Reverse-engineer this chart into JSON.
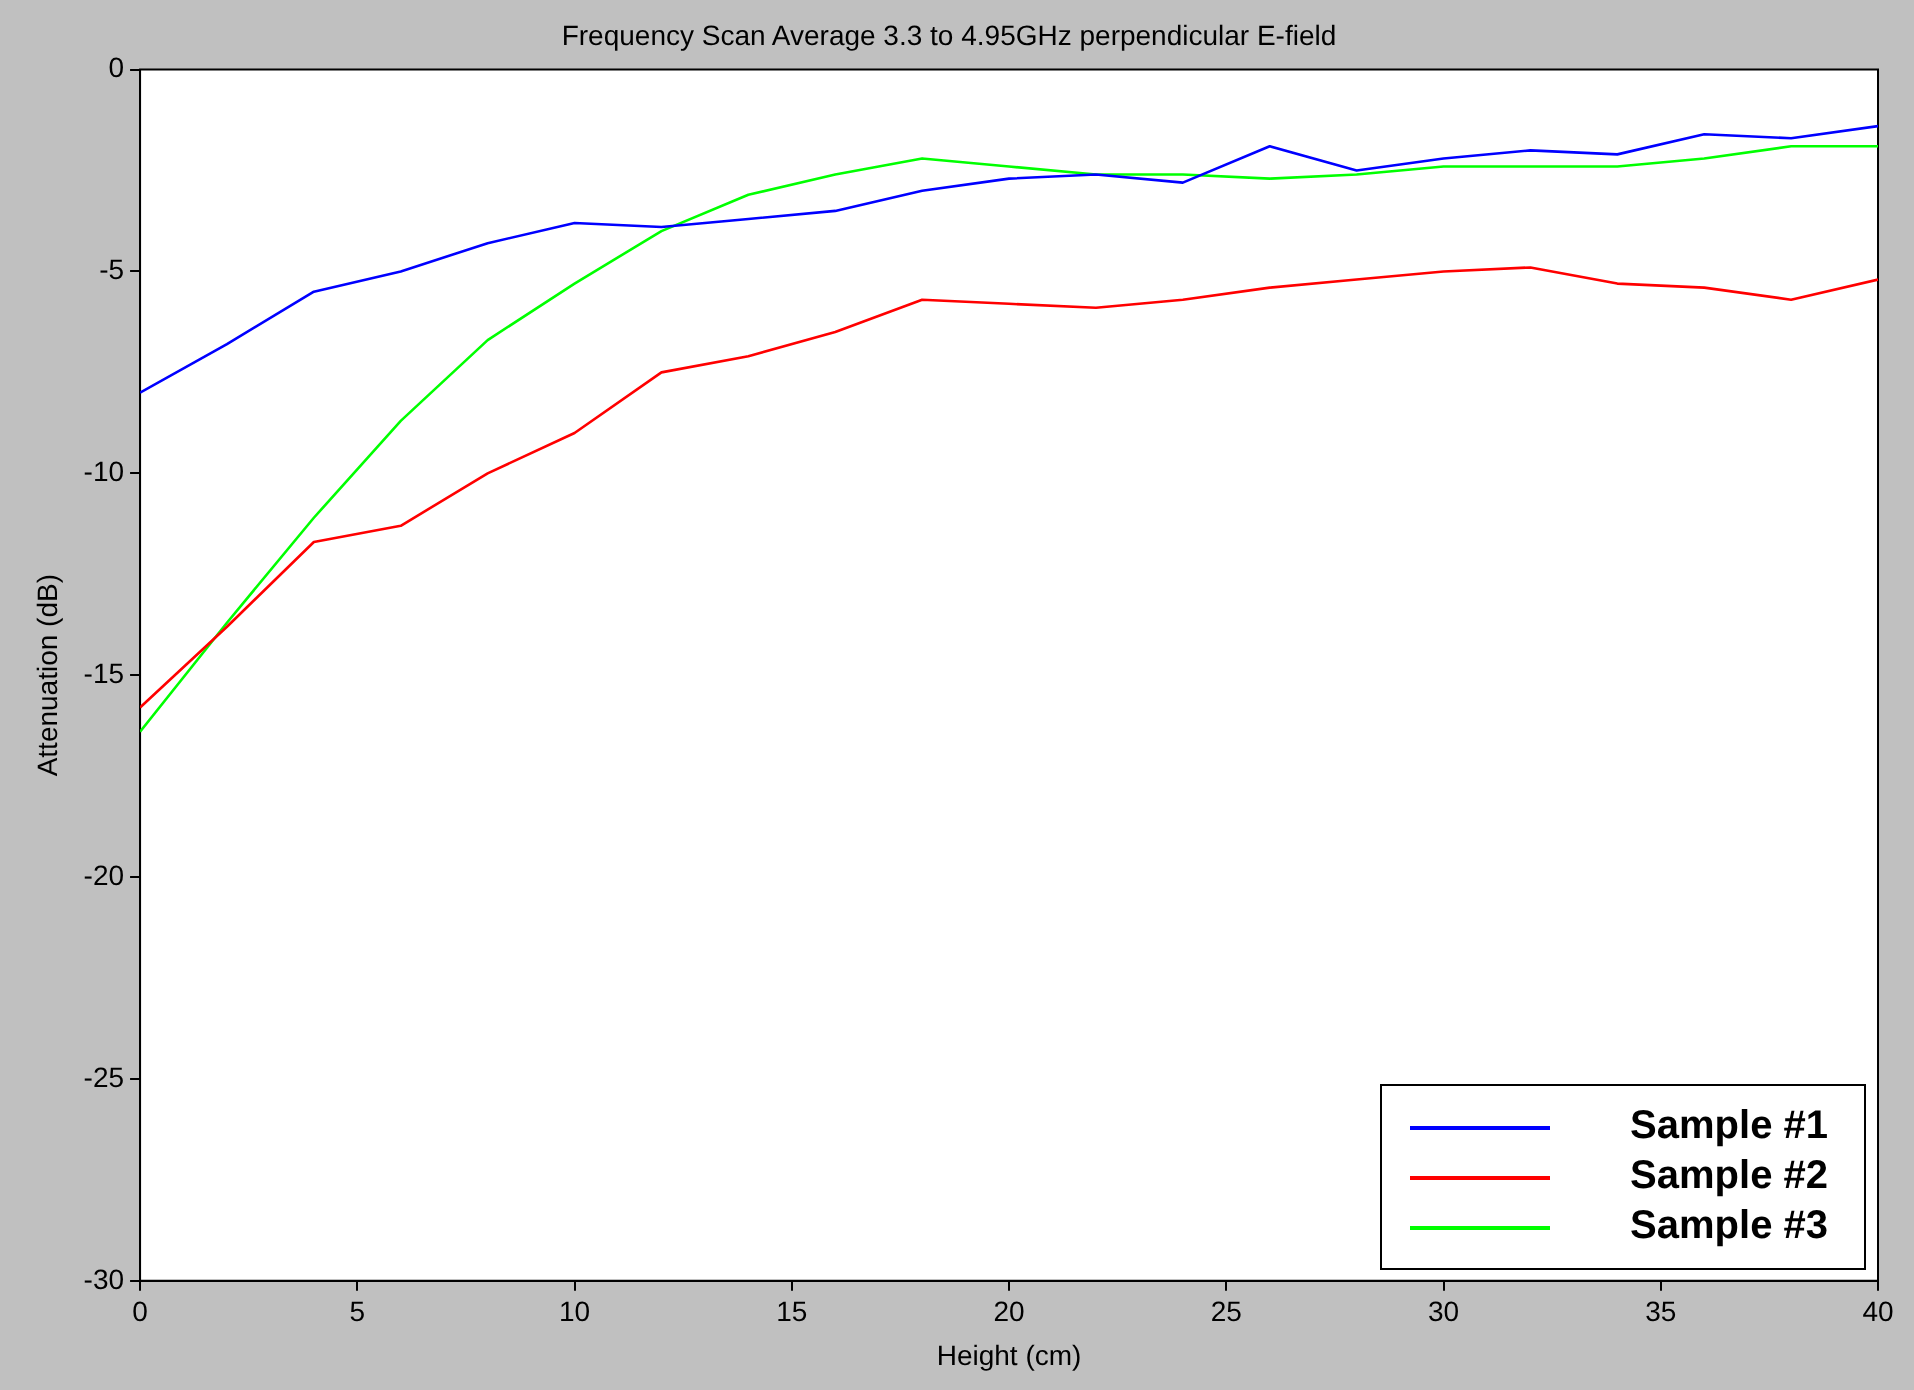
{
  "chart_data": {
    "type": "line",
    "title": "Frequency Scan Average 3.3 to 4.95GHz perpendicular E-field",
    "xlabel": "Height (cm)",
    "ylabel": "Attenuation (dB)",
    "x": [
      0,
      2,
      4,
      6,
      8,
      10,
      12,
      14,
      16,
      18,
      20,
      22,
      24,
      26,
      28,
      30,
      32,
      34,
      36,
      38,
      40
    ],
    "series": [
      {
        "name": "Sample #1",
        "color": "#0000ff",
        "values": [
          -8,
          -6.8,
          -5.5,
          -5.0,
          -4.3,
          -3.8,
          -3.9,
          -3.7,
          -3.5,
          -3.0,
          -2.7,
          -2.6,
          -2.8,
          -1.9,
          -2.5,
          -2.2,
          -2.0,
          -2.1,
          -1.6,
          -1.7,
          -1.4
        ]
      },
      {
        "name": "Sample #2",
        "color": "#ff0000",
        "values": [
          -15.8,
          -13.8,
          -11.7,
          -11.3,
          -10.0,
          -9.0,
          -7.5,
          -7.1,
          -6.5,
          -5.7,
          -5.8,
          -5.9,
          -5.7,
          -5.4,
          -5.2,
          -5.0,
          -4.9,
          -5.3,
          -5.4,
          -5.7,
          -5.2
        ]
      },
      {
        "name": "Sample #3",
        "color": "#00ff00",
        "values": [
          -16.4,
          -13.7,
          -11.1,
          -8.7,
          -6.7,
          -5.3,
          -4.0,
          -3.1,
          -2.6,
          -2.2,
          -2.4,
          -2.6,
          -2.6,
          -2.7,
          -2.6,
          -2.4,
          -2.4,
          -2.4,
          -2.2,
          -1.9,
          -1.9
        ]
      }
    ],
    "xlim": [
      0,
      40
    ],
    "xticks": [
      0,
      5,
      10,
      15,
      20,
      25,
      30,
      35,
      40
    ],
    "ylim": [
      -30,
      0
    ],
    "yticks": [
      -30,
      -25,
      -20,
      -15,
      -10,
      -5,
      0
    ],
    "grid": false,
    "legend": "bottom right",
    "marker": "none",
    "line_style": "solid"
  }
}
